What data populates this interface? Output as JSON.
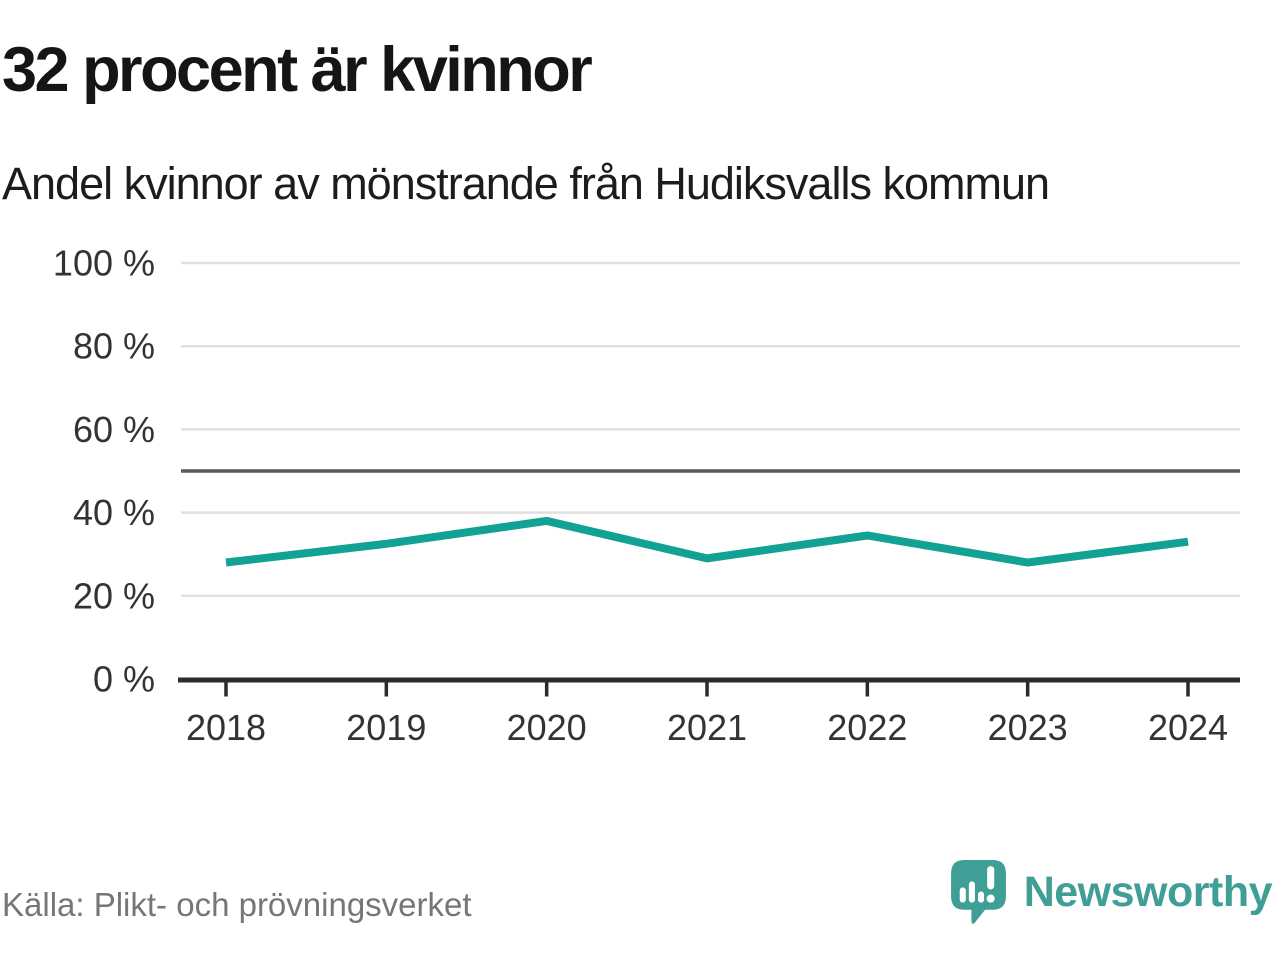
{
  "header": {
    "title": "32 procent är kvinnor",
    "subtitle": "Andel kvinnor av mönstrande från Hudiksvalls kommun"
  },
  "chart_data": {
    "type": "line",
    "title": "32 procent är kvinnor",
    "subtitle": "Andel kvinnor av mönstrande från Hudiksvalls kommun",
    "categories": [
      "2018",
      "2019",
      "2020",
      "2021",
      "2022",
      "2023",
      "2024"
    ],
    "series": [
      {
        "name": "Andel kvinnor av mönstrande",
        "values": [
          28,
          32.5,
          38,
          29,
          34.5,
          28,
          33
        ]
      }
    ],
    "unit": "%",
    "xlabel": "",
    "ylabel": "",
    "ylim": [
      0,
      100
    ],
    "yticks": [
      0,
      20,
      40,
      60,
      80,
      100
    ],
    "ytick_labels": [
      "0 %",
      "20 %",
      "40 %",
      "60 %",
      "80 %",
      "100 %"
    ],
    "reference_line": 50,
    "grid": true,
    "legend": false,
    "colors": {
      "line": "#12a195",
      "reference_line": "#595959",
      "gridline": "#e0e0e0",
      "axis": "#2b2b2b",
      "tick_label": "#333333"
    }
  },
  "footer": {
    "source": "Källa: Plikt- och prövningsverket",
    "brand": "Newsworthy",
    "brand_color": "#3f9e95"
  }
}
